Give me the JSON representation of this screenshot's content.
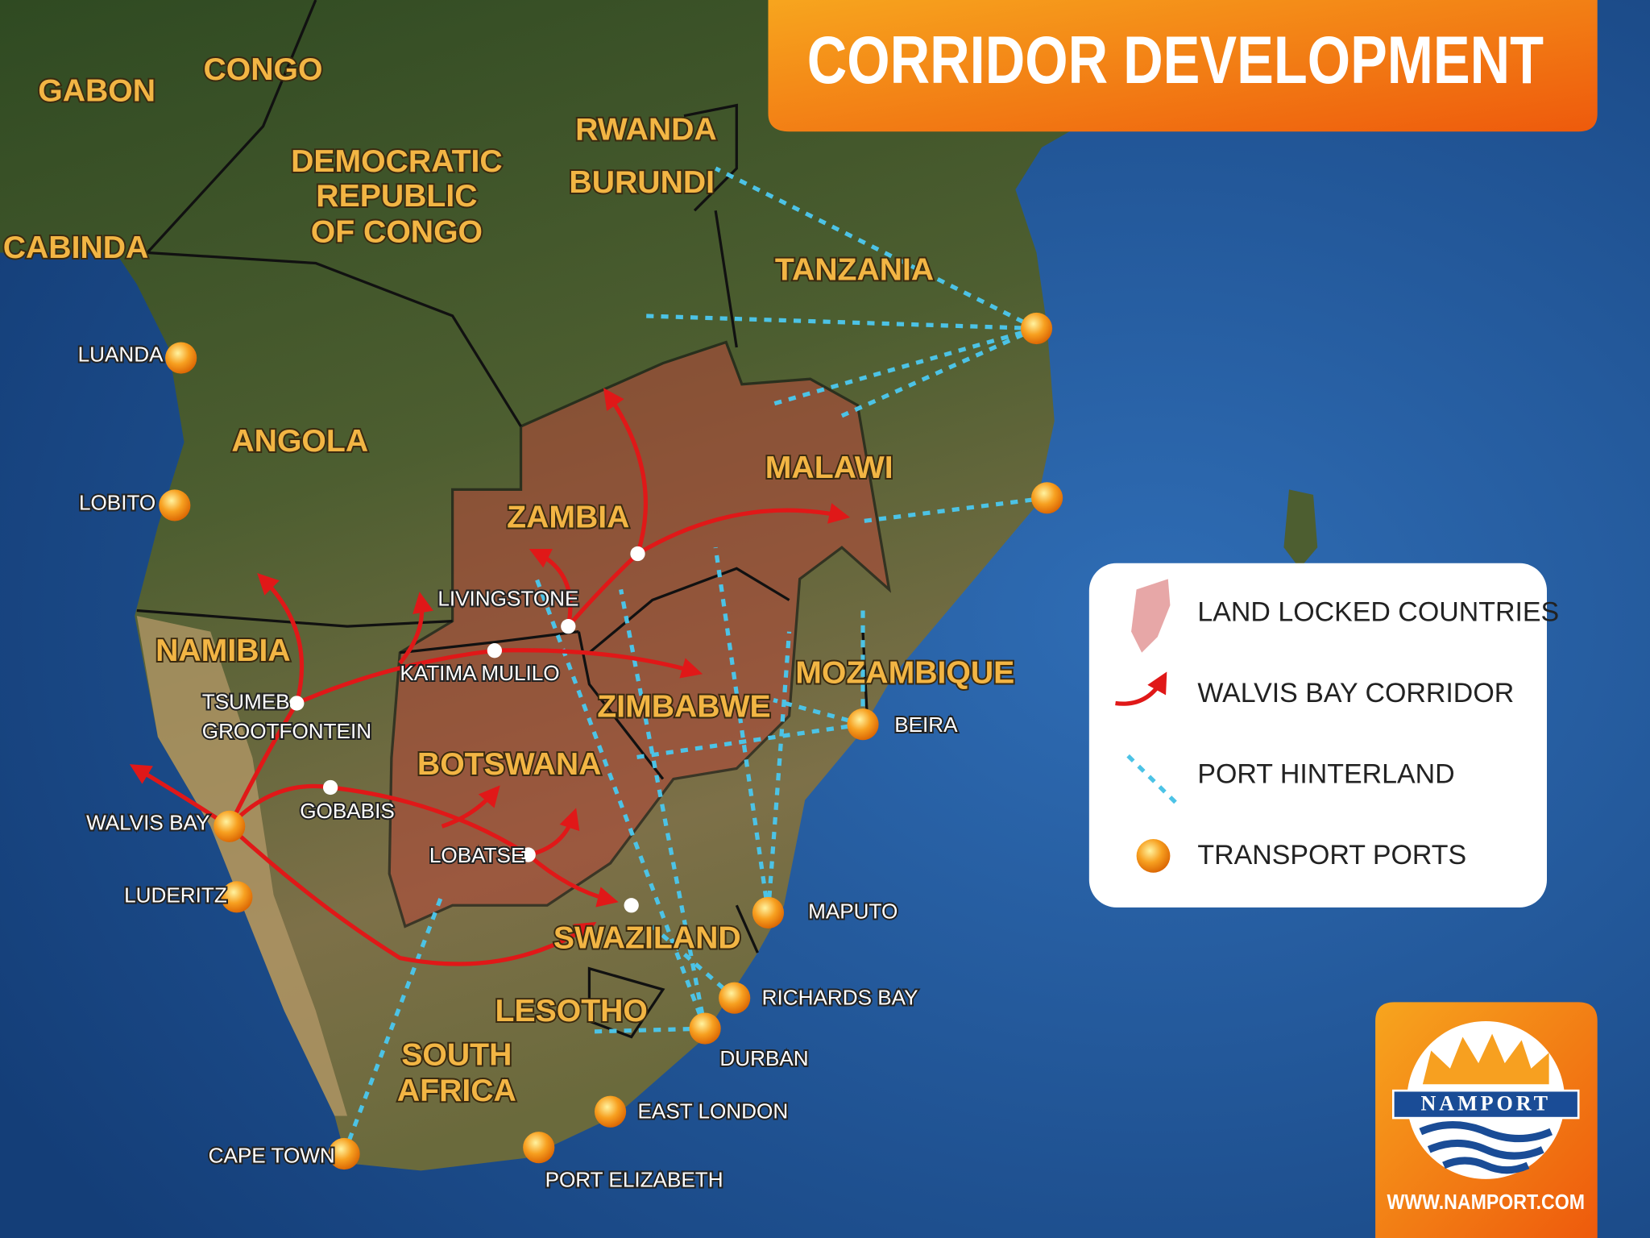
{
  "title": "CORRIDOR DEVELOPMENT",
  "countries": [
    [
      "GABON"
    ],
    [
      "CONGO"
    ],
    [
      "DEMOCRATIC",
      "REPUBLIC",
      "OF CONGO"
    ],
    [
      "CABINDA"
    ],
    [
      "RWANDA"
    ],
    [
      "BURUNDI"
    ],
    [
      "TANZANIA"
    ],
    [
      "ANGOLA"
    ],
    [
      "MALAWI"
    ],
    [
      "ZAMBIA"
    ],
    [
      "NAMIBIA"
    ],
    [
      "MOZAMBIQUE"
    ],
    [
      "ZIMBABWE"
    ],
    [
      "BOTSWANA"
    ],
    [
      "SWAZILAND"
    ],
    [
      "LESOTHO"
    ],
    [
      "SOUTH",
      "AFRICA"
    ]
  ],
  "ports": [
    "LUANDA",
    "LOBITO",
    "WALVIS BAY",
    "LUDERITZ",
    "CAPE TOWN",
    "PORT ELIZABETH",
    "EAST LONDON",
    "DURBAN",
    "RICHARDS BAY",
    "MAPUTO",
    "BEIRA"
  ],
  "towns": [
    [
      "LIVINGSTONE"
    ],
    [
      "KATIMA MULILO"
    ],
    [
      "TSUMEB",
      "GROOTFONTEIN"
    ],
    [
      "GOBABIS"
    ],
    [
      "LOBATSE"
    ]
  ],
  "legend": [
    "LAND LOCKED COUNTRIES",
    "WALVIS BAY CORRIDOR",
    "PORT HINTERLAND",
    "TRANSPORT PORTS"
  ],
  "logo": {
    "name": "NAMPORT",
    "url": "WWW.NAMPORT.COM"
  }
}
